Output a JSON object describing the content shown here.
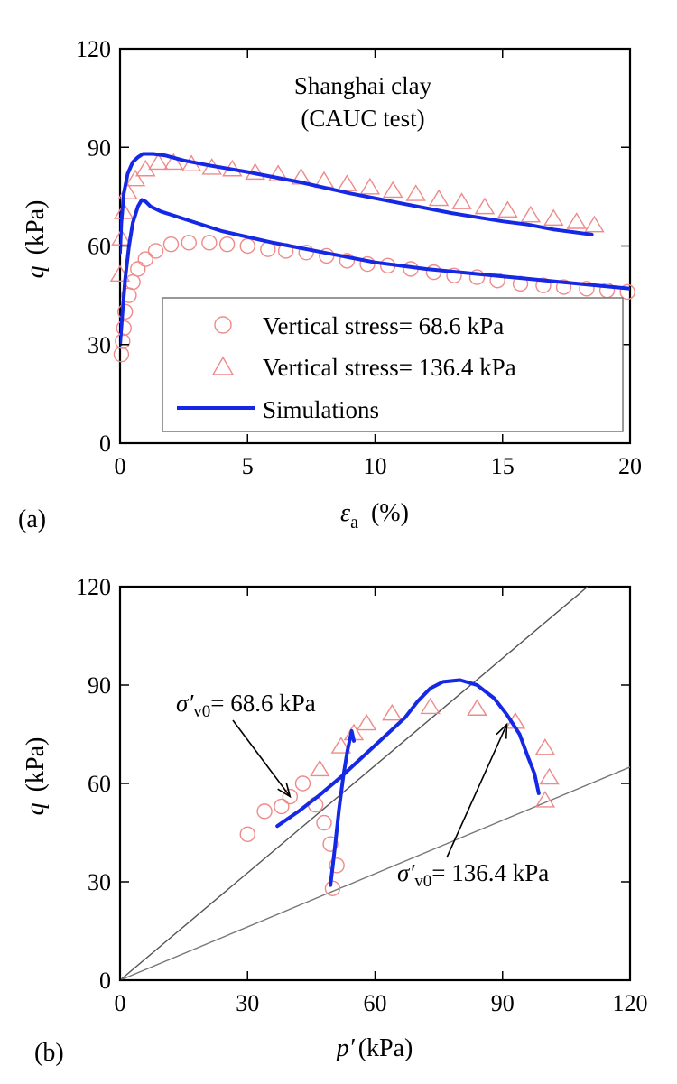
{
  "chart_data": [
    {
      "type": "scatter",
      "panel_label": "(a)",
      "annotation": [
        "Shanghai clay",
        "(CAUC test)"
      ],
      "xlabel": {
        "symbol": "ε",
        "sub": "a",
        "unit": "(%)"
      },
      "ylabel": {
        "symbol": "q",
        "unit": "(kPa)"
      },
      "xlim": [
        0,
        20
      ],
      "ylim": [
        0,
        120
      ],
      "xticks": [
        "0",
        "5",
        "10",
        "15",
        "20"
      ],
      "yticks": [
        "0",
        "30",
        "60",
        "90",
        "120"
      ],
      "xtick_values": [
        0,
        5,
        10,
        15,
        20
      ],
      "ytick_values": [
        0,
        30,
        60,
        90,
        120
      ],
      "legend": {
        "placement": "lower-right",
        "entries": [
          "Vertical stress= 68.6 kPa",
          "Vertical stress= 136.4 kPa",
          "Simulations"
        ]
      },
      "series": [
        {
          "marker": "circle",
          "color": "#ef8a8a",
          "x": [
            0.05,
            0.1,
            0.15,
            0.2,
            0.35,
            0.5,
            0.7,
            1.0,
            1.4,
            2.0,
            2.7,
            3.5,
            4.2,
            5.0,
            5.8,
            6.5,
            7.3,
            8.1,
            8.9,
            9.7,
            10.5,
            11.4,
            12.3,
            13.1,
            14.0,
            14.8,
            15.7,
            16.6,
            17.4,
            18.3,
            19.1,
            19.9
          ],
          "y": [
            27,
            31,
            35,
            40,
            45,
            49,
            53,
            56,
            58.5,
            60.5,
            61,
            61,
            60.5,
            60,
            59,
            58.5,
            58,
            57,
            55.5,
            54.5,
            54,
            53,
            52,
            51,
            50.5,
            49.5,
            48.5,
            48,
            47.5,
            47,
            46.5,
            46
          ]
        },
        {
          "marker": "triangle",
          "color": "#ef8a8a",
          "x": [
            0.0,
            0.05,
            0.15,
            0.3,
            0.6,
            1.0,
            1.5,
            2.1,
            2.8,
            3.6,
            4.4,
            5.3,
            6.2,
            7.1,
            8.0,
            8.9,
            9.8,
            10.7,
            11.6,
            12.5,
            13.4,
            14.3,
            15.2,
            16.1,
            17.0,
            17.9,
            18.6
          ],
          "y": [
            51,
            62,
            70,
            76,
            80,
            83,
            85,
            85,
            84.5,
            83.5,
            83,
            82,
            81.5,
            80.5,
            79.5,
            78.5,
            77.5,
            76.5,
            75.5,
            74,
            73,
            71.5,
            70.5,
            69,
            68,
            67,
            66
          ]
        },
        {
          "kind": "line",
          "color": "#1428e6",
          "x": [
            0.0,
            0.1,
            0.2,
            0.35,
            0.5,
            0.7,
            0.85,
            1.0,
            1.2,
            1.6,
            2.0,
            3.0,
            4.0,
            6.0,
            8.0,
            10.0,
            12.0,
            14.0,
            16.0,
            18.0,
            20.0
          ],
          "y": [
            30,
            40,
            50,
            60,
            67,
            72,
            74,
            73.5,
            72,
            70.5,
            69.5,
            67,
            64.5,
            61,
            58,
            55,
            53,
            51.5,
            50,
            48.5,
            47
          ]
        },
        {
          "kind": "line",
          "color": "#1428e6",
          "x": [
            0.0,
            0.05,
            0.15,
            0.3,
            0.5,
            0.7,
            0.9,
            1.3,
            1.8,
            2.5,
            3.5,
            5.0,
            7.0,
            9.0,
            11.0,
            13.0,
            15.0,
            16.0,
            17.0,
            18.5
          ],
          "y": [
            58,
            67,
            76,
            82,
            85.5,
            87,
            88,
            88,
            87.5,
            86,
            84.5,
            82.5,
            79.5,
            76,
            73,
            70,
            67.5,
            66.5,
            65,
            63.5
          ]
        }
      ]
    },
    {
      "type": "scatter",
      "panel_label": "(b)",
      "xlabel": {
        "symbol": "p′",
        "unit": "(kPa)"
      },
      "ylabel": {
        "symbol": "q",
        "unit": "(kPa)"
      },
      "xlim": [
        0,
        120
      ],
      "ylim": [
        0,
        120
      ],
      "xticks": [
        "0",
        "30",
        "60",
        "90",
        "120"
      ],
      "yticks": [
        "0",
        "30",
        "60",
        "90",
        "120"
      ],
      "xtick_values": [
        0,
        30,
        60,
        90,
        120
      ],
      "ytick_values": [
        0,
        30,
        60,
        90,
        120
      ],
      "annotations": [
        {
          "text": "= 68.6 kPa",
          "symbol": "σ′",
          "sub": "v0",
          "arrow_to": [
            40,
            56
          ]
        },
        {
          "text": "= 136.4 kPa",
          "symbol": "σ′",
          "sub": "v0",
          "arrow_to": [
            91,
            78
          ]
        }
      ],
      "reference_lines": [
        {
          "color": "#555555",
          "x": [
            0,
            110
          ],
          "y": [
            0,
            120
          ]
        },
        {
          "color": "#777777",
          "x": [
            0,
            120
          ],
          "y": [
            0,
            65
          ]
        }
      ],
      "series": [
        {
          "marker": "circle",
          "color": "#ef8a8a",
          "x": [
            30,
            34,
            38,
            40,
            43,
            46,
            48,
            49.5,
            50,
            51
          ],
          "y": [
            44.5,
            51.5,
            53,
            56,
            60,
            53.5,
            48,
            41.5,
            28,
            35
          ]
        },
        {
          "marker": "triangle",
          "color": "#ef8a8a",
          "x": [
            47,
            52,
            55,
            58,
            64,
            73,
            84,
            93,
            100,
            101,
            100
          ],
          "y": [
            64,
            71,
            75,
            78,
            81,
            83,
            82.5,
            78.5,
            70.5,
            61.5,
            54.5
          ]
        },
        {
          "kind": "line",
          "color": "#1428e6",
          "x": [
            37,
            42,
            47,
            52,
            57,
            62,
            67,
            70,
            73,
            76,
            80,
            84,
            88,
            91,
            94,
            96,
            97.5,
            98.5
          ],
          "y": [
            47,
            51.5,
            56.5,
            62,
            68,
            74,
            80,
            85,
            89,
            91,
            91.5,
            90,
            86,
            81,
            75,
            68,
            63,
            57
          ]
        },
        {
          "kind": "line",
          "color": "#1428e6",
          "x": [
            49.5,
            50.5,
            51.5,
            52.5,
            53.5,
            54.5,
            55
          ],
          "y": [
            29,
            40,
            52,
            62,
            70,
            76,
            73
          ]
        }
      ]
    }
  ]
}
